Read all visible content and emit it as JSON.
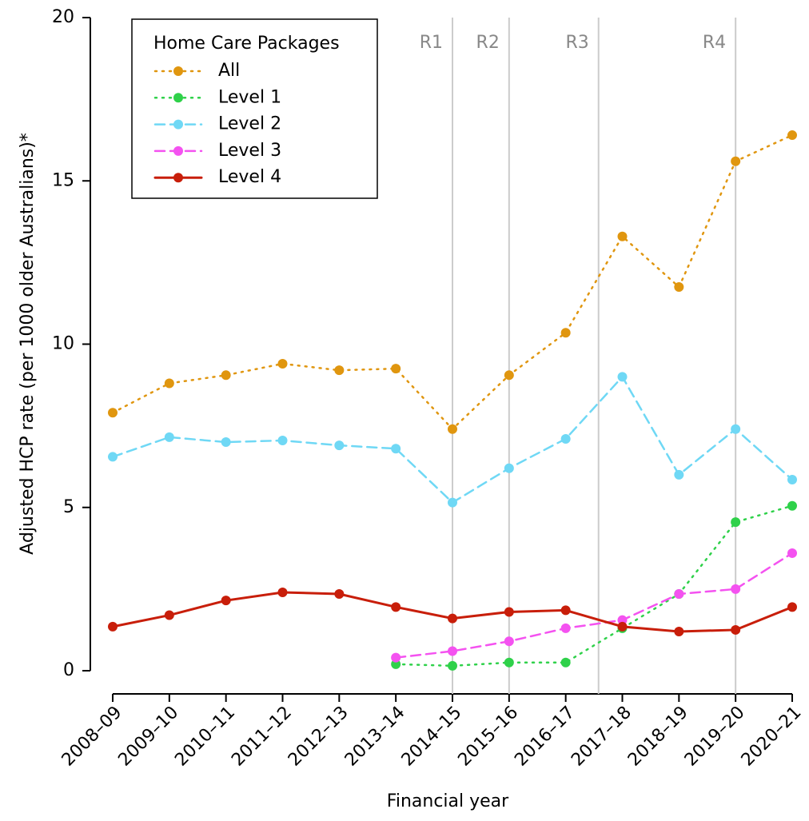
{
  "chart_data": {
    "type": "line",
    "y_label": "Adjusted HCP rate (per 1000 older Australians)*",
    "x_label": "Financial year",
    "legend_title": "Home Care Packages",
    "legend_position": "upper left",
    "categories": [
      "2008–09",
      "2009–10",
      "2010–11",
      "2011–12",
      "2012–13",
      "2013–14",
      "2014–15",
      "2015–16",
      "2016–17",
      "2017–18",
      "2018–19",
      "2019–20",
      "2020–21"
    ],
    "series": [
      {
        "name": "All",
        "color": "#e0960f",
        "style": "dotted",
        "values": [
          7.9,
          8.8,
          9.05,
          9.4,
          9.2,
          9.25,
          7.4,
          9.05,
          10.35,
          13.3,
          11.75,
          15.6,
          16.4
        ]
      },
      {
        "name": "Level 1",
        "color": "#2fd14a",
        "style": "dotted",
        "values": [
          null,
          null,
          null,
          null,
          null,
          0.2,
          0.15,
          0.25,
          0.25,
          1.3,
          2.35,
          4.55,
          5.05
        ]
      },
      {
        "name": "Level 2",
        "color": "#6fd8f5",
        "style": "dashed",
        "values": [
          6.55,
          7.15,
          7.0,
          7.05,
          6.9,
          6.8,
          5.15,
          6.2,
          7.1,
          9.0,
          6.0,
          7.4,
          5.85
        ]
      },
      {
        "name": "Level 3",
        "color": "#f452f0",
        "style": "dashed",
        "values": [
          null,
          null,
          null,
          null,
          null,
          0.4,
          0.6,
          0.9,
          1.3,
          1.55,
          2.35,
          2.5,
          3.6
        ]
      },
      {
        "name": "Level 4",
        "color": "#c81e0a",
        "style": "solid",
        "values": [
          1.35,
          1.7,
          2.15,
          2.4,
          2.35,
          1.95,
          1.6,
          1.8,
          1.85,
          1.35,
          1.2,
          1.25,
          1.95
        ]
      }
    ],
    "reference_lines": [
      {
        "label": "R1",
        "x": 6
      },
      {
        "label": "R2",
        "x": 7
      },
      {
        "label": "R3",
        "x": 8.58
      },
      {
        "label": "R4",
        "x": 11
      }
    ],
    "ylim": [
      0,
      20
    ],
    "yticks": [
      0,
      5,
      10,
      15,
      20
    ],
    "grid": false
  }
}
